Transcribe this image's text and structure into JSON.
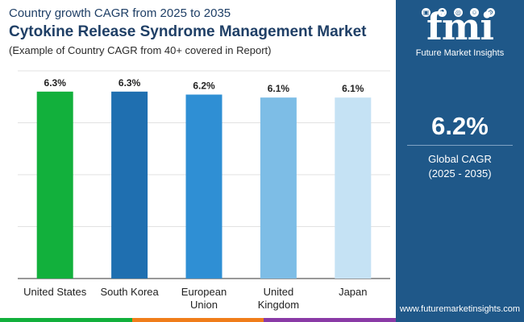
{
  "header": {
    "subtitle": "Country growth CAGR from 2025 to 2035",
    "title": "Cytokine Release Syndrome Management Market",
    "note": "(Example of Country CAGR from 40+ covered in Report)"
  },
  "chart_data": {
    "type": "bar",
    "categories": [
      [
        "United States"
      ],
      [
        "South Korea"
      ],
      [
        "European",
        "Union"
      ],
      [
        "United",
        "Kingdom"
      ],
      [
        "Japan"
      ]
    ],
    "values": [
      6.3,
      6.3,
      6.2,
      6.1,
      6.1
    ],
    "value_labels": [
      "6.3%",
      "6.3%",
      "6.2%",
      "6.1%",
      "6.1%"
    ],
    "colors": [
      "#12b03c",
      "#1f6fb0",
      "#2f8fd4",
      "#7dbde6",
      "#c5e2f4"
    ],
    "ylim": [
      0,
      7
    ],
    "grid": true,
    "legend": "none"
  },
  "side_panel": {
    "logo_text": "fmi",
    "logo_caption": "Future Market Insights",
    "logo_icons": [
      "chart-icon",
      "flask-icon",
      "globe-icon",
      "person-icon",
      "gear-icon"
    ],
    "global_value": "6.2%",
    "global_label": "Global CAGR",
    "global_period": "(2025 - 2035)",
    "website": "www.futuremarketinsights.com",
    "background_color": "#1f5889"
  },
  "bottom_strip_colors": [
    "#12b03c",
    "#f07d1a",
    "#8a3aa6"
  ]
}
